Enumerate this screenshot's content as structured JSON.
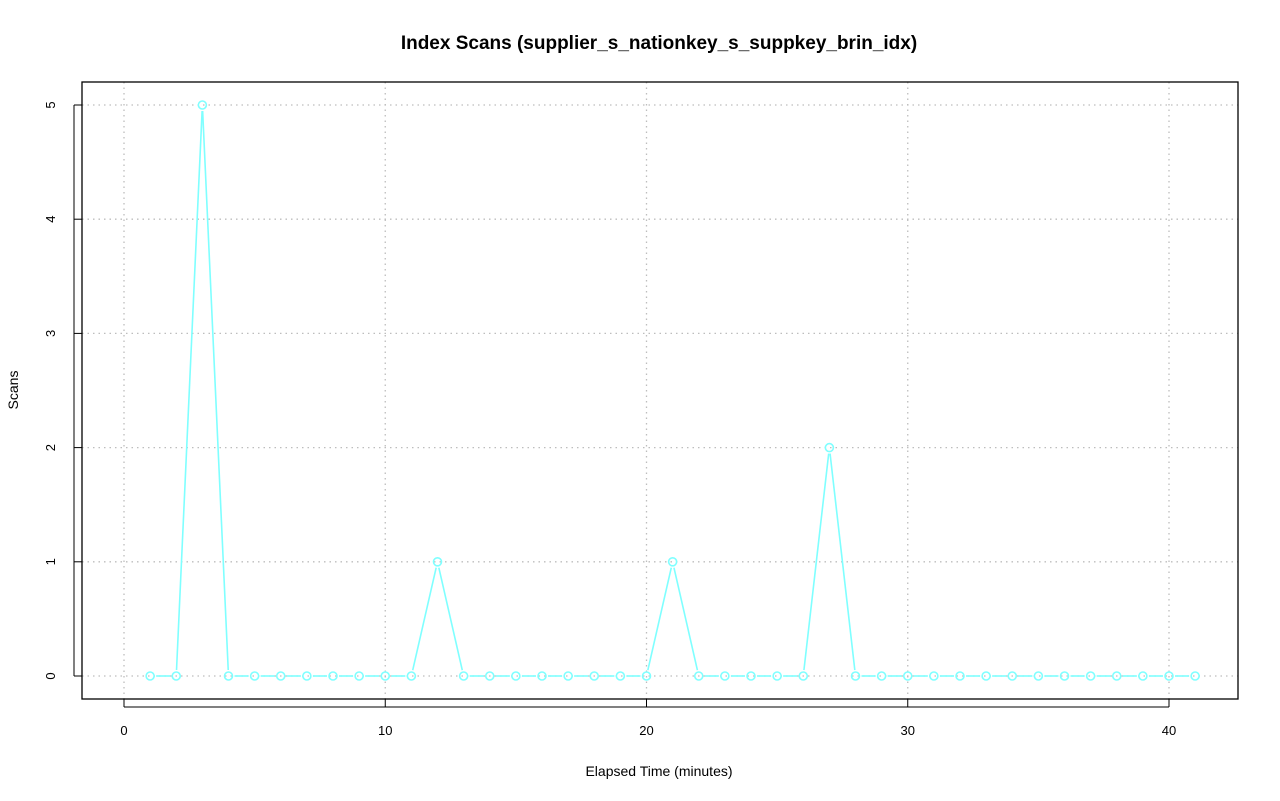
{
  "chart_data": {
    "type": "line",
    "title": "Index Scans (supplier_s_nationkey_s_suppkey_brin_idx)",
    "xlabel": "Elapsed Time (minutes)",
    "ylabel": "Scans",
    "xlim": [
      0,
      41
    ],
    "ylim": [
      0,
      5
    ],
    "xticks": [
      0,
      10,
      20,
      30,
      40
    ],
    "yticks": [
      0,
      1,
      2,
      3,
      4,
      5
    ],
    "grid": true,
    "series": [
      {
        "color": "#7fffff",
        "x": [
          1,
          2,
          3,
          4,
          5,
          6,
          7,
          8,
          9,
          10,
          11,
          12,
          13,
          14,
          15,
          16,
          17,
          18,
          19,
          20,
          21,
          22,
          23,
          24,
          25,
          26,
          27,
          28,
          29,
          30,
          31,
          32,
          33,
          34,
          35,
          36,
          37,
          38,
          39,
          40,
          41
        ],
        "values": [
          0,
          0,
          5,
          0,
          0,
          0,
          0,
          0,
          0,
          0,
          0,
          1,
          0,
          0,
          0,
          0,
          0,
          0,
          0,
          0,
          1,
          0,
          0,
          0,
          0,
          0,
          2,
          0,
          0,
          0,
          0,
          0,
          0,
          0,
          0,
          0,
          0,
          0,
          0,
          0,
          0
        ]
      }
    ]
  }
}
